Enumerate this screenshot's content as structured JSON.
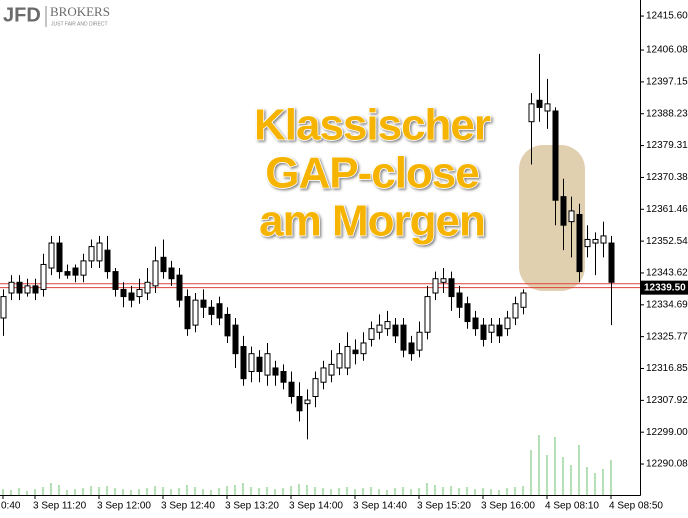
{
  "logo": {
    "name": "JFD",
    "brand": "BROKERS",
    "tagline": "JUST FAIR AND DIRECT"
  },
  "chart_data": {
    "type": "candlestick",
    "annotation": [
      "Klassischer",
      "GAP-close",
      "am Morgen"
    ],
    "categories": [
      "0:40",
      null,
      null,
      null,
      "3 Sep 11:20",
      null,
      null,
      null,
      null,
      null,
      null,
      null,
      "3 Sep 12:00",
      null,
      null,
      null,
      null,
      null,
      null,
      null,
      "3 Sep 12:40",
      null,
      null,
      null,
      null,
      null,
      null,
      null,
      "3 Sep 13:20",
      null,
      null,
      null,
      null,
      null,
      null,
      null,
      "3 Sep 14:00",
      null,
      null,
      null,
      null,
      null,
      null,
      null,
      "3 Sep 14:40",
      null,
      null,
      null,
      null,
      null,
      null,
      null,
      "3 Sep 15:20",
      null,
      null,
      null,
      null,
      null,
      null,
      null,
      "3 Sep 16:00",
      null,
      null,
      null,
      null,
      null,
      null,
      null,
      "4 Sep 08:10",
      null,
      null,
      null,
      null,
      null,
      null,
      null,
      "4 Sep 08:50"
    ],
    "open": [
      12331,
      12338,
      12341,
      12338,
      12340,
      12339,
      12345,
      12352,
      12344,
      12345,
      12343,
      12347,
      12347,
      12350,
      12344,
      12339,
      12338,
      12337,
      12338,
      12340,
      12348,
      12345,
      12343,
      12337,
      12329,
      12336,
      12334,
      12335,
      12332,
      12329,
      12323,
      12316,
      12320,
      12315,
      12317,
      12316,
      12313,
      12309,
      12307,
      12309,
      12313,
      12315,
      12317,
      12317,
      12322,
      12321,
      12325,
      12327,
      12328,
      12329,
      12329,
      12324,
      12322,
      12327,
      12338,
      12341,
      12342,
      12338,
      12335,
      12331,
      12329,
      12327,
      12329,
      12328,
      12331,
      12334,
      12386,
      12392,
      12389,
      12389,
      12365,
      12358,
      12360,
      12351,
      12352,
      12352,
      12352
    ],
    "high": [
      12339,
      12343,
      12343,
      12342,
      12342,
      12349,
      12354,
      12354,
      12346,
      12346,
      12349,
      12353,
      12354,
      12354,
      12345,
      12341,
      12340,
      12342,
      12345,
      12351,
      12353,
      12347,
      12345,
      12339,
      12338,
      12339,
      12336,
      12337,
      12334,
      12331,
      12326,
      12323,
      12322,
      12324,
      12319,
      12318,
      12316,
      12313,
      12311,
      12316,
      12319,
      12322,
      12324,
      12327,
      12325,
      12327,
      12330,
      12332,
      12333,
      12331,
      12331,
      12326,
      12330,
      12340,
      12344,
      12345,
      12344,
      12340,
      12337,
      12333,
      12331,
      12331,
      12331,
      12333,
      12337,
      12339,
      12394,
      12405,
      12398,
      12390,
      12370,
      12365,
      12363,
      12357,
      12355,
      12358,
      12354
    ],
    "low": [
      12326,
      12336,
      12336,
      12337,
      12336,
      12337,
      12343,
      12342,
      12342,
      12341,
      12341,
      12345,
      12345,
      12342,
      12337,
      12334,
      12334,
      12335,
      12336,
      12338,
      12342,
      12340,
      12334,
      12326,
      12327,
      12331,
      12329,
      12329,
      12324,
      12317,
      12312,
      12313,
      12313,
      12312,
      12312,
      12311,
      12307,
      12302,
      12297,
      12306,
      12311,
      12313,
      12315,
      12315,
      12318,
      12319,
      12323,
      12325,
      12326,
      12324,
      12320,
      12319,
      12320,
      12325,
      12336,
      12338,
      12333,
      12331,
      12328,
      12326,
      12323,
      12324,
      12324,
      12326,
      12329,
      12332,
      12374,
      12386,
      12384,
      12357,
      12350,
      12348,
      12341,
      12348,
      12343,
      12348,
      12329
    ],
    "close": [
      12337,
      12341,
      12338,
      12340,
      12338,
      12346,
      12352,
      12344,
      12343,
      12343,
      12347,
      12351,
      12352,
      12344,
      12339,
      12337,
      12336,
      12339,
      12341,
      12347,
      12344,
      12342,
      12336,
      12328,
      12336,
      12334,
      12332,
      12331,
      12326,
      12321,
      12314,
      12321,
      12316,
      12321,
      12315,
      12313,
      12309,
      12305,
      12308,
      12314,
      12317,
      12318,
      12321,
      12323,
      12321,
      12324,
      12328,
      12329,
      12330,
      12326,
      12322,
      12321,
      12327,
      12337,
      12342,
      12342,
      12337,
      12334,
      12330,
      12328,
      12325,
      12329,
      12326,
      12331,
      12335,
      12338,
      12391,
      12390,
      12391,
      12364,
      12357,
      12361,
      12344,
      12353,
      12353,
      12354,
      12341
    ],
    "volume": [
      6,
      5,
      7,
      4,
      6,
      8,
      12,
      10,
      5,
      6,
      7,
      9,
      8,
      9,
      7,
      6,
      5,
      6,
      7,
      9,
      8,
      6,
      7,
      10,
      8,
      6,
      5,
      7,
      9,
      10,
      12,
      8,
      7,
      8,
      6,
      7,
      9,
      11,
      10,
      8,
      7,
      6,
      7,
      8,
      6,
      7,
      8,
      6,
      5,
      7,
      8,
      6,
      7,
      12,
      10,
      8,
      9,
      7,
      8,
      6,
      7,
      6,
      5,
      7,
      8,
      9,
      45,
      60,
      40,
      58,
      38,
      30,
      50,
      28,
      22,
      26,
      35
    ],
    "ylim": [
      12281.4,
      12420.1
    ],
    "yticks": [
      {
        "value": 12415.6,
        "label": "12415.60"
      },
      12406.08,
      12397.15,
      12388.23,
      12379.31,
      12370.38,
      12361.46,
      12352.54,
      12343.62,
      12334.69,
      12325.77,
      12316.85,
      12307.92,
      {
        "value": 12299,
        "label": "12299.00"
      },
      12290.08
    ],
    "current_price": {
      "value": 12339.5,
      "label": "12339.50"
    },
    "reference_line": 12340.6,
    "up_color": "#ffffff",
    "down_color": "#000000",
    "volume_color": "#6dbf6d",
    "price_line_color": "#e0403a",
    "highlight_color": "#c8a970"
  }
}
